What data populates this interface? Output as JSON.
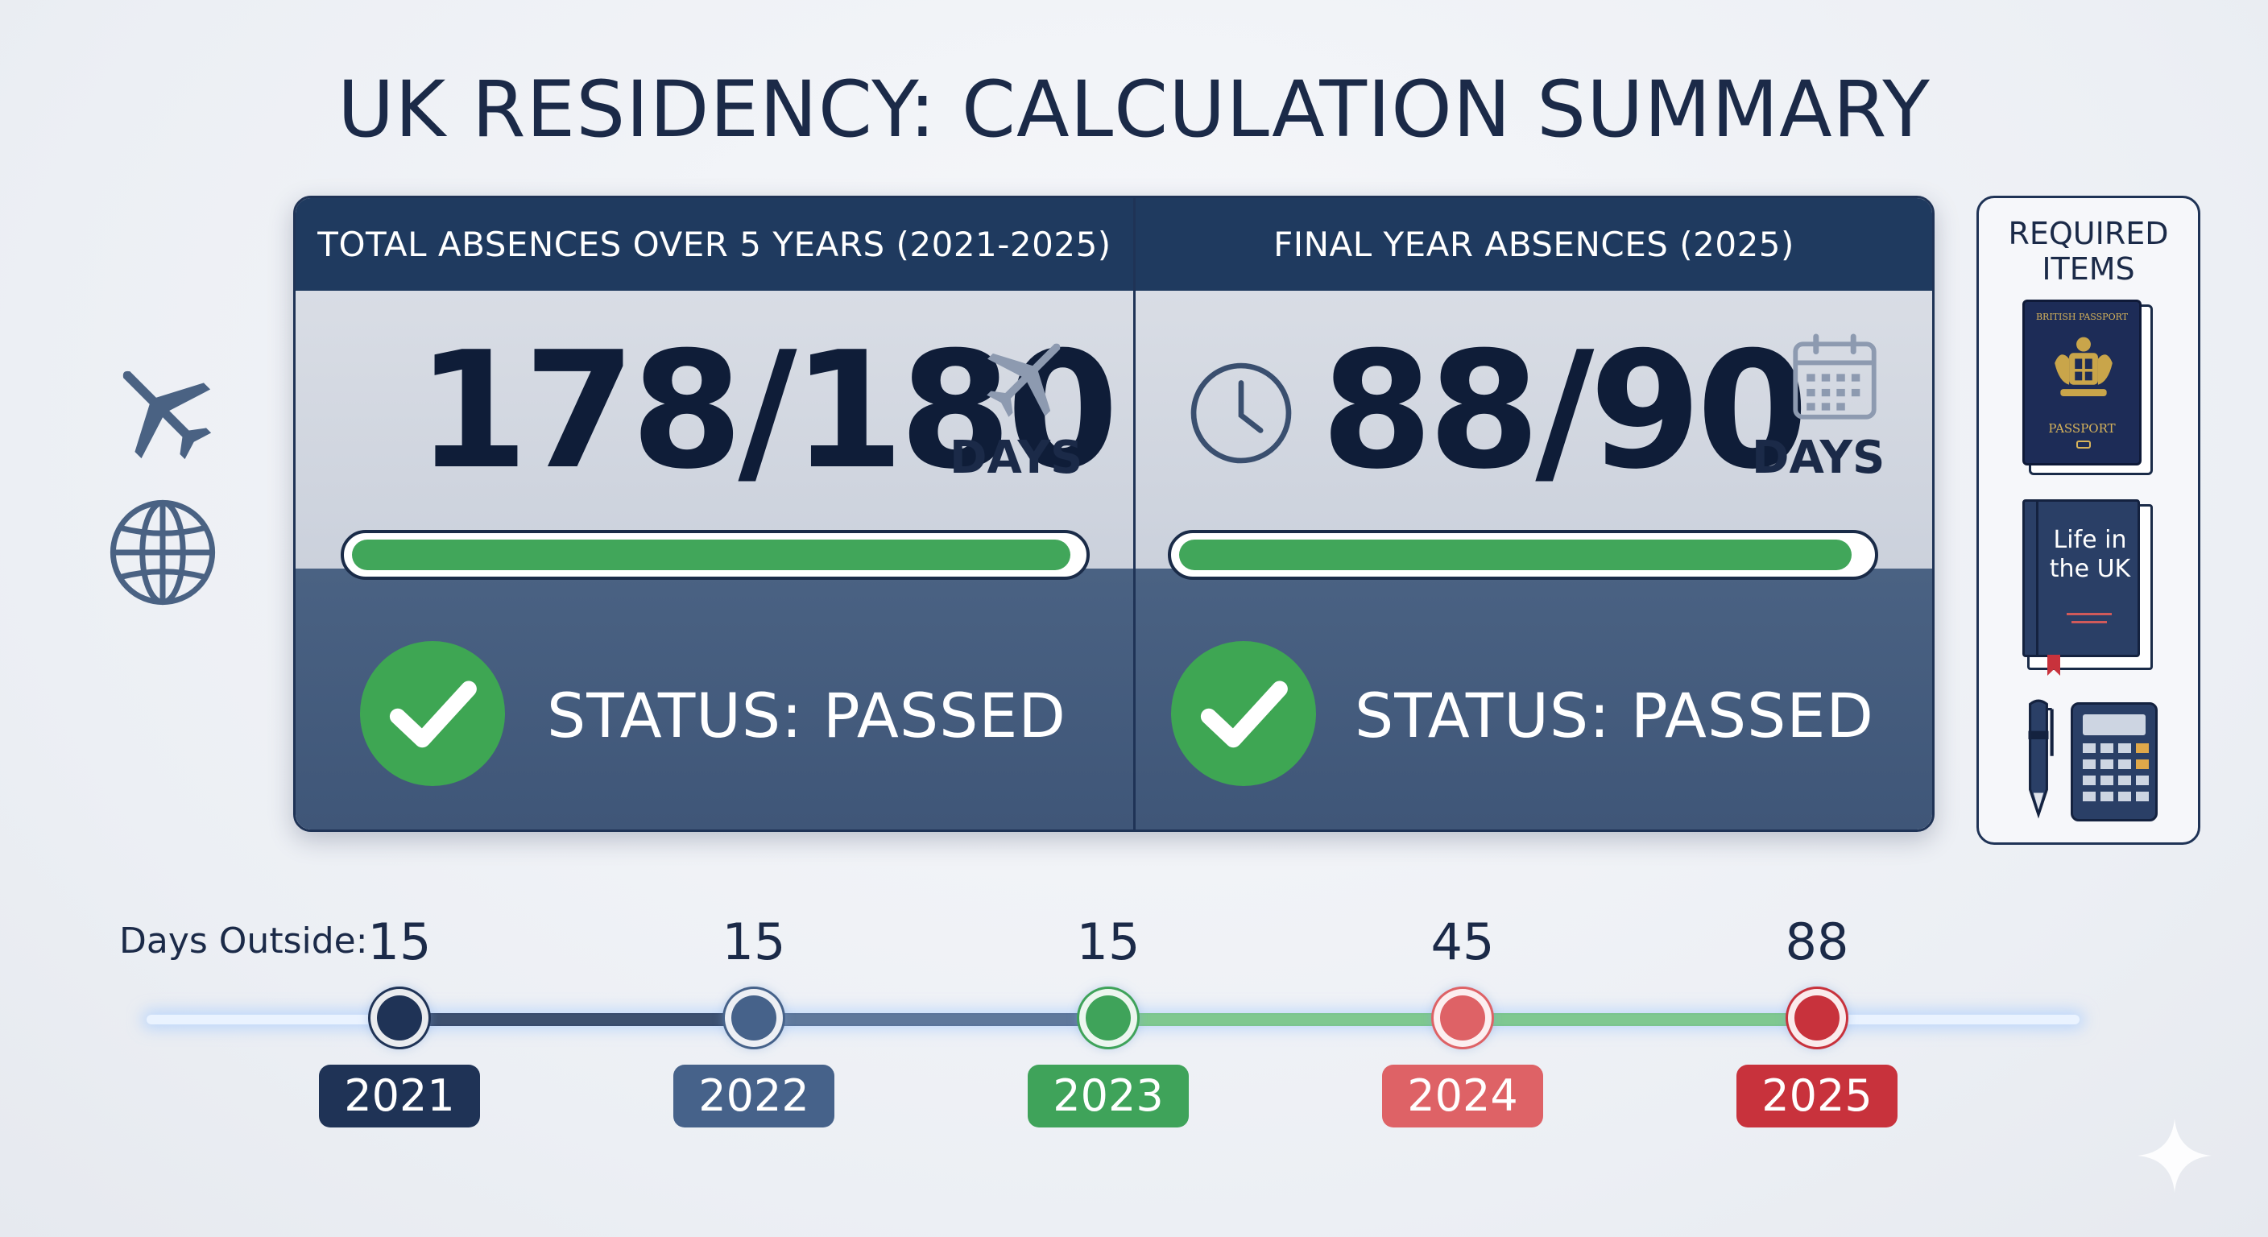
{
  "title": "UK RESIDENCY: CALCULATION SUMMARY",
  "panels": [
    {
      "header": "TOTAL ABSENCES OVER 5 YEARS (2021-2025)",
      "value": "178",
      "limit": "180",
      "separator": "/",
      "unit": "DAYS",
      "progress": 0.989,
      "status": "STATUS: PASSED",
      "icon": "airplane-icon"
    },
    {
      "header": "FINAL YEAR ABSENCES (2025)",
      "value": "88",
      "limit": "90",
      "separator": "/",
      "unit": "DAYS",
      "progress": 0.978,
      "status": "STATUS: PASSED",
      "icon": "calendar-icon"
    }
  ],
  "required_items": {
    "title_line1": "REQUIRED",
    "title_line2": "ITEMS",
    "passport_top": "BRITISH PASSPORT",
    "passport_bottom": "PASSPORT",
    "book_line1": "Life in",
    "book_line2": "the UK"
  },
  "timeline": {
    "label": "Days Outside:",
    "entries": [
      {
        "year": "2021",
        "days": "15",
        "color": "#1f3356"
      },
      {
        "year": "2022",
        "days": "15",
        "color": "#46628a"
      },
      {
        "year": "2023",
        "days": "15",
        "color": "#3fa35a"
      },
      {
        "year": "2024",
        "days": "45",
        "color": "#de6266"
      },
      {
        "year": "2025",
        "days": "88",
        "color": "#c8323c"
      }
    ]
  },
  "colors": {
    "navy": "#1f3a5f",
    "green": "#41a65a",
    "red": "#c8323c"
  }
}
